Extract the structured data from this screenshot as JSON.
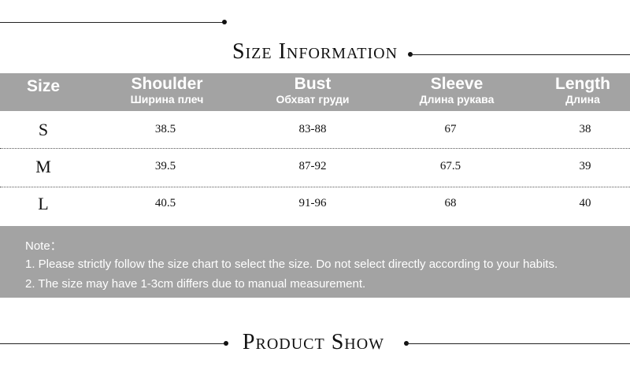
{
  "header": {
    "title": "Size Information"
  },
  "table": {
    "columns": [
      {
        "name": "Size"
      },
      {
        "name": "Shoulder",
        "sub": "Ширина плеч"
      },
      {
        "name": "Bust",
        "sub": "Обхват груди"
      },
      {
        "name": "Sleeve",
        "sub": "Длина рукава"
      },
      {
        "name": "Length",
        "sub": "Длина"
      }
    ],
    "rows": [
      [
        "S",
        "38.5",
        "83-88",
        "67",
        "38"
      ],
      [
        "M",
        "39.5",
        "87-92",
        "67.5",
        "39"
      ],
      [
        "L",
        "40.5",
        "91-96",
        "68",
        "40"
      ]
    ]
  },
  "notes": {
    "title": "Note：",
    "items": [
      "1. Please strictly follow the size chart to select the size. Do not select directly according to your habits.",
      "2. The size may have 1-3cm differs due to manual measurement."
    ]
  },
  "footer": {
    "title": "Product Show"
  }
}
